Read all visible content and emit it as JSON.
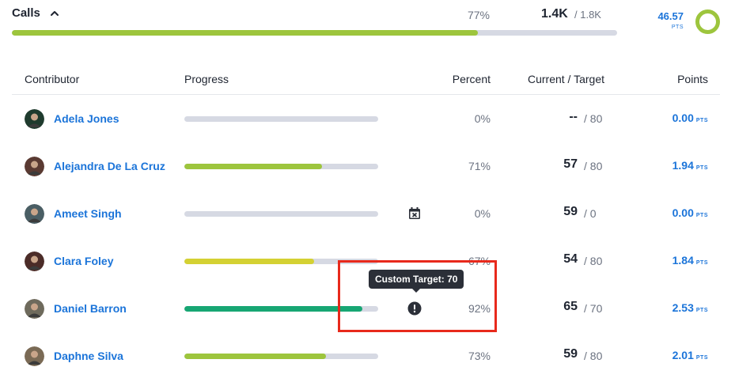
{
  "summary": {
    "title": "Calls",
    "progress_fraction": 0.77,
    "percent": "77%",
    "current": "1.4K",
    "target": "/ 1.8K",
    "points": "46.57",
    "points_unit": "PTS",
    "ring_color": "#9dc53d"
  },
  "table": {
    "headers": {
      "contributor": "Contributor",
      "progress": "Progress",
      "percent": "Percent",
      "current_target": "Current / Target",
      "points": "Points"
    },
    "rows": [
      {
        "name": "Adela Jones",
        "progress": 0.0,
        "bar_color": "#9dc53d",
        "icon": "",
        "percent": "0%",
        "current": "--",
        "target": "/ 80",
        "points": "0.00",
        "points_unit": "PTS",
        "avatar_color": "#1f3b2e"
      },
      {
        "name": "Alejandra De La Cruz",
        "progress": 0.71,
        "bar_color": "#9dc53d",
        "icon": "",
        "percent": "71%",
        "current": "57",
        "target": "/ 80",
        "points": "1.94",
        "points_unit": "PTS",
        "avatar_color": "#5a3a32"
      },
      {
        "name": "Ameet Singh",
        "progress": 0.0,
        "bar_color": "#9dc53d",
        "icon": "calendar-x-icon",
        "percent": "0%",
        "current": "59",
        "target": "/ 0",
        "points": "0.00",
        "points_unit": "PTS",
        "avatar_color": "#4a5e64"
      },
      {
        "name": "Clara Foley",
        "progress": 0.67,
        "bar_color": "#d4d133",
        "icon": "",
        "percent": "67%",
        "current": "54",
        "target": "/ 80",
        "points": "1.84",
        "points_unit": "PTS",
        "avatar_color": "#4b2c28"
      },
      {
        "name": "Daniel Barron",
        "progress": 0.92,
        "bar_color": "#17a673",
        "icon": "exclamation-circle-icon",
        "percent": "92%",
        "current": "65",
        "target": "/ 70",
        "points": "2.53",
        "points_unit": "PTS",
        "avatar_color": "#6e6a5c"
      },
      {
        "name": "Daphne Silva",
        "progress": 0.73,
        "bar_color": "#9dc53d",
        "icon": "",
        "percent": "73%",
        "current": "59",
        "target": "/ 80",
        "points": "2.01",
        "points_unit": "PTS",
        "avatar_color": "#7a6a55"
      }
    ]
  },
  "tooltip": {
    "text": "Custom Target: 70"
  },
  "highlight": {
    "color": "#e8291c"
  }
}
